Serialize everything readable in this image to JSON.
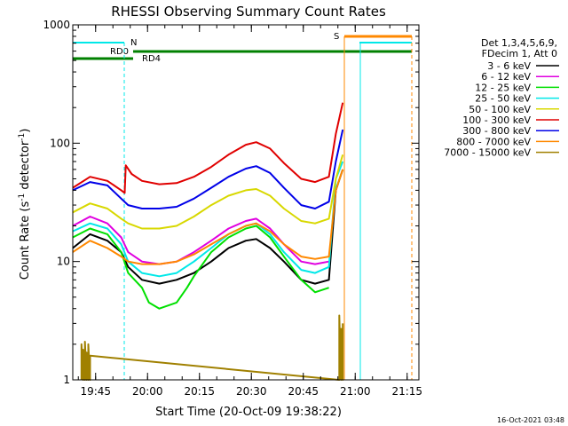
{
  "chart_data": {
    "type": "line",
    "title": "RHESSI Observing Summary Count Rates",
    "xlabel": "Start Time (20-Oct-09 19:38:22)",
    "ylabel": "Count Rate (s",
    "ylabel_sup1": "-1",
    "ylabel_mid": " detector",
    "ylabel_sup2": "-1",
    "ylabel_end": ")",
    "y_scale": "log",
    "ylim": [
      1,
      1000
    ],
    "y_ticks": [
      {
        "value": 1,
        "label": "1"
      },
      {
        "value": 10,
        "label": "10"
      },
      {
        "value": 100,
        "label": "100"
      },
      {
        "value": 1000,
        "label": "1000"
      }
    ],
    "x_minutes_range": [
      0,
      100
    ],
    "x_ticks": [
      {
        "minute": 6.6,
        "label": "19:45"
      },
      {
        "minute": 21.6,
        "label": "20:00"
      },
      {
        "minute": 36.6,
        "label": "20:15"
      },
      {
        "minute": 51.6,
        "label": "20:30"
      },
      {
        "minute": 66.6,
        "label": "20:45"
      },
      {
        "minute": 81.6,
        "label": "21:00"
      },
      {
        "minute": 96.6,
        "label": "21:15"
      }
    ],
    "footer_date": "16-Oct-2021 03:48",
    "legend_header": [
      "Det 1,3,4,5,6,9,",
      "FDecim 1, Att 0"
    ],
    "series": [
      {
        "name": "3 - 6 keV",
        "color": "#000000",
        "values": [
          [
            0,
            13
          ],
          [
            5,
            17
          ],
          [
            10,
            15
          ],
          [
            14,
            12
          ],
          [
            16,
            9
          ],
          [
            20,
            7
          ],
          [
            25,
            6.5
          ],
          [
            30,
            7
          ],
          [
            35,
            8
          ],
          [
            40,
            10
          ],
          [
            45,
            13
          ],
          [
            50,
            15
          ],
          [
            53,
            15.5
          ],
          [
            57,
            13
          ],
          [
            61,
            10
          ],
          [
            66,
            7
          ],
          [
            70,
            6.5
          ],
          [
            74,
            7
          ],
          [
            76,
            40
          ],
          [
            78,
            60
          ]
        ]
      },
      {
        "name": "6 - 12 keV",
        "color": "#e000e0",
        "values": [
          [
            0,
            20
          ],
          [
            5,
            24
          ],
          [
            10,
            21
          ],
          [
            14,
            16
          ],
          [
            16,
            12
          ],
          [
            20,
            10
          ],
          [
            25,
            9.5
          ],
          [
            30,
            10
          ],
          [
            35,
            12
          ],
          [
            40,
            15
          ],
          [
            45,
            19
          ],
          [
            50,
            22
          ],
          [
            53,
            23
          ],
          [
            57,
            19
          ],
          [
            61,
            14
          ],
          [
            66,
            10
          ],
          [
            70,
            9.5
          ],
          [
            74,
            10
          ]
        ]
      },
      {
        "name": "12 - 25 keV",
        "color": "#00e000",
        "values": [
          [
            0,
            16
          ],
          [
            5,
            19
          ],
          [
            10,
            17
          ],
          [
            14,
            12
          ],
          [
            16,
            8
          ],
          [
            20,
            6
          ],
          [
            22,
            4.5
          ],
          [
            25,
            4
          ],
          [
            30,
            4.5
          ],
          [
            33,
            6
          ],
          [
            35,
            7.5
          ],
          [
            40,
            12
          ],
          [
            45,
            16
          ],
          [
            50,
            19
          ],
          [
            53,
            20
          ],
          [
            57,
            16
          ],
          [
            61,
            11
          ],
          [
            66,
            7
          ],
          [
            70,
            5.5
          ],
          [
            74,
            6
          ]
        ]
      },
      {
        "name": "25 - 50 keV",
        "color": "#00e8e8",
        "values": [
          [
            0,
            18
          ],
          [
            5,
            21
          ],
          [
            10,
            19
          ],
          [
            14,
            14
          ],
          [
            16,
            10
          ],
          [
            20,
            8
          ],
          [
            25,
            7.5
          ],
          [
            30,
            8
          ],
          [
            35,
            10
          ],
          [
            40,
            13
          ],
          [
            45,
            17
          ],
          [
            50,
            20
          ],
          [
            53,
            21
          ],
          [
            57,
            17
          ],
          [
            61,
            12
          ],
          [
            66,
            8.5
          ],
          [
            70,
            8
          ],
          [
            74,
            9
          ],
          [
            76,
            50
          ],
          [
            78,
            70
          ]
        ]
      },
      {
        "name": "50 - 100 keV",
        "color": "#d8d800",
        "values": [
          [
            0,
            26
          ],
          [
            5,
            31
          ],
          [
            10,
            28
          ],
          [
            14,
            23
          ],
          [
            16,
            21
          ],
          [
            20,
            19
          ],
          [
            25,
            19
          ],
          [
            30,
            20
          ],
          [
            35,
            24
          ],
          [
            40,
            30
          ],
          [
            45,
            36
          ],
          [
            50,
            40
          ],
          [
            53,
            41
          ],
          [
            57,
            36
          ],
          [
            61,
            28
          ],
          [
            66,
            22
          ],
          [
            70,
            21
          ],
          [
            74,
            23
          ],
          [
            76,
            50
          ],
          [
            78,
            80
          ]
        ]
      },
      {
        "name": "100 - 300 keV",
        "color": "#e00000",
        "values": [
          [
            0,
            42
          ],
          [
            5,
            52
          ],
          [
            10,
            48
          ],
          [
            14,
            40
          ],
          [
            15,
            38
          ],
          [
            15.3,
            65
          ],
          [
            17,
            55
          ],
          [
            20,
            48
          ],
          [
            25,
            45
          ],
          [
            30,
            46
          ],
          [
            35,
            52
          ],
          [
            40,
            63
          ],
          [
            45,
            80
          ],
          [
            50,
            97
          ],
          [
            53,
            102
          ],
          [
            57,
            90
          ],
          [
            61,
            68
          ],
          [
            66,
            50
          ],
          [
            70,
            47
          ],
          [
            74,
            52
          ],
          [
            76,
            120
          ],
          [
            78,
            220
          ]
        ]
      },
      {
        "name": "300 - 800 keV",
        "color": "#0000e8",
        "values": [
          [
            0,
            40
          ],
          [
            5,
            47
          ],
          [
            10,
            44
          ],
          [
            14,
            34
          ],
          [
            16,
            30
          ],
          [
            20,
            28
          ],
          [
            25,
            28
          ],
          [
            30,
            29
          ],
          [
            35,
            34
          ],
          [
            40,
            42
          ],
          [
            45,
            52
          ],
          [
            50,
            61
          ],
          [
            53,
            64
          ],
          [
            57,
            56
          ],
          [
            61,
            42
          ],
          [
            66,
            30
          ],
          [
            70,
            28
          ],
          [
            74,
            32
          ],
          [
            76,
            70
          ],
          [
            78,
            130
          ]
        ]
      },
      {
        "name": "800 - 7000 keV",
        "color": "#ff8800",
        "values": [
          [
            0,
            12
          ],
          [
            5,
            15
          ],
          [
            10,
            13
          ],
          [
            14,
            11
          ],
          [
            16,
            10
          ],
          [
            20,
            9.5
          ],
          [
            25,
            9.5
          ],
          [
            30,
            10
          ],
          [
            35,
            11.5
          ],
          [
            40,
            14
          ],
          [
            45,
            17
          ],
          [
            50,
            20
          ],
          [
            53,
            21
          ],
          [
            57,
            18
          ],
          [
            61,
            14
          ],
          [
            66,
            11
          ],
          [
            70,
            10.5
          ],
          [
            74,
            11
          ],
          [
            76,
            40
          ],
          [
            78,
            60
          ]
        ]
      },
      {
        "name": "7000 - 15000 keV",
        "color": "#a08000",
        "values": [
          [
            2.5,
            1
          ],
          [
            2.5,
            2
          ],
          [
            3,
            1
          ],
          [
            3,
            1.8
          ],
          [
            3.5,
            1
          ],
          [
            3.5,
            2.1
          ],
          [
            4,
            1
          ],
          [
            4,
            1.7
          ],
          [
            4.5,
            1
          ],
          [
            4.5,
            2
          ],
          [
            5,
            1
          ],
          [
            5,
            1.6
          ],
          [
            77,
            1
          ],
          [
            77,
            3.5
          ],
          [
            77.5,
            1
          ],
          [
            77.5,
            2.7
          ],
          [
            78,
            1
          ],
          [
            78,
            3
          ]
        ]
      }
    ],
    "annotations": [
      {
        "label": "N",
        "color": "#00e8e8",
        "kind": "flag"
      },
      {
        "label": "RD0",
        "color": "#008000",
        "kind": "flag"
      },
      {
        "label": "RD4",
        "color": "#008000",
        "kind": "flag"
      },
      {
        "label": "S",
        "color": "#ff8800",
        "kind": "flag"
      }
    ]
  }
}
